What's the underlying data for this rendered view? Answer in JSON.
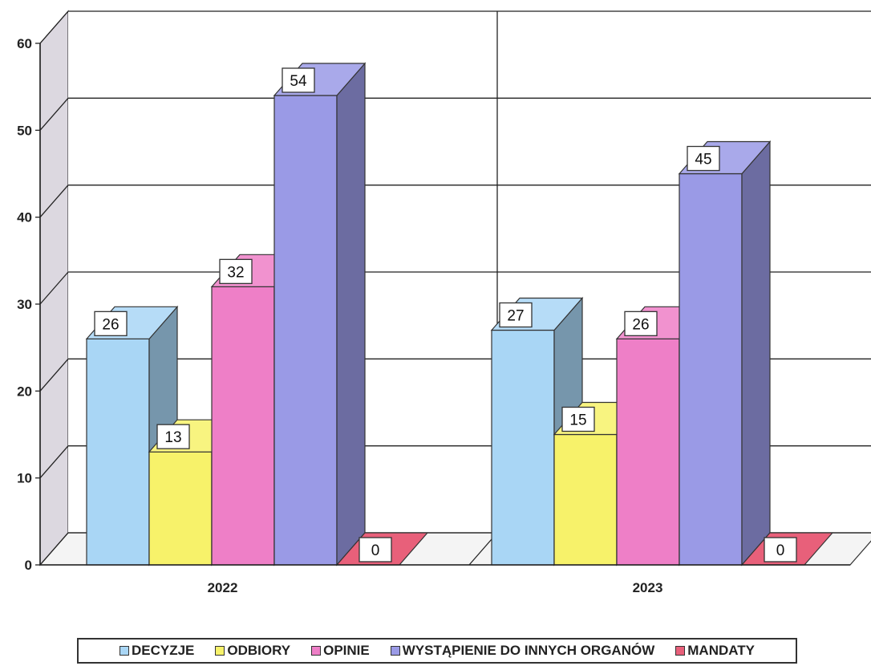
{
  "chart_data": {
    "type": "bar",
    "categories": [
      "2022",
      "2023"
    ],
    "series": [
      {
        "name": "DECYZJE",
        "values": [
          26,
          27
        ],
        "color": "#a9d6f5"
      },
      {
        "name": "ODBIORY",
        "values": [
          13,
          15
        ],
        "color": "#f7f26a"
      },
      {
        "name": "OPINIE",
        "values": [
          32,
          26
        ],
        "color": "#ee7fc7"
      },
      {
        "name": "WYSTĄPIENIE DO INNYCH ORGANÓW",
        "values": [
          54,
          45
        ],
        "color": "#9a9ae6"
      },
      {
        "name": "MANDATY",
        "values": [
          0,
          0
        ],
        "color": "#e8607a"
      }
    ],
    "ylim": [
      0,
      60
    ],
    "yticks": [
      "0",
      "10",
      "20",
      "30",
      "40",
      "50",
      "60"
    ],
    "grid": true,
    "legend_position": "bottom",
    "style": "3d"
  }
}
